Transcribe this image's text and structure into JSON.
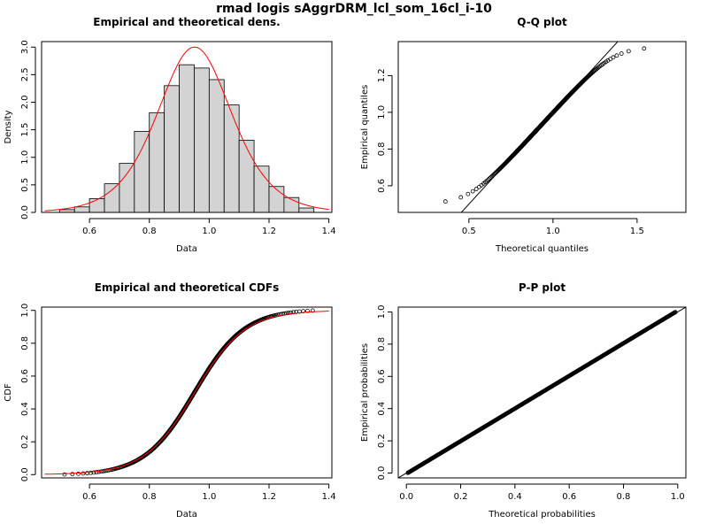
{
  "page": {
    "title": "rmad logis sAggrDRM_lcl_som_16cl_i-10"
  },
  "colors": {
    "fit_line": "#ff0000",
    "bar_fill": "#d3d3d3",
    "ink": "#000000"
  },
  "chart_data": [
    {
      "id": "density",
      "type": "bar",
      "title": "Empirical and theoretical dens.",
      "xlabel": "Data",
      "ylabel": "Density",
      "xlim": [
        0.44,
        1.41
      ],
      "ylim": [
        0,
        3.1
      ],
      "xticks": [
        "0.6",
        "0.8",
        "1.0",
        "1.2",
        "1.4"
      ],
      "yticks": [
        "0.0",
        "0.5",
        "1.0",
        "1.5",
        "2.0",
        "2.5",
        "3.0"
      ],
      "bins": [
        {
          "from": 0.5,
          "to": 0.55,
          "density": 0.05
        },
        {
          "from": 0.55,
          "to": 0.6,
          "density": 0.1
        },
        {
          "from": 0.6,
          "to": 0.65,
          "density": 0.25
        },
        {
          "from": 0.65,
          "to": 0.7,
          "density": 0.52
        },
        {
          "from": 0.7,
          "to": 0.75,
          "density": 0.89
        },
        {
          "from": 0.75,
          "to": 0.8,
          "density": 1.47
        },
        {
          "from": 0.8,
          "to": 0.85,
          "density": 1.81
        },
        {
          "from": 0.85,
          "to": 0.9,
          "density": 2.3
        },
        {
          "from": 0.9,
          "to": 0.95,
          "density": 2.68
        },
        {
          "from": 0.95,
          "to": 1.0,
          "density": 2.62
        },
        {
          "from": 1.0,
          "to": 1.05,
          "density": 2.41
        },
        {
          "from": 1.05,
          "to": 1.1,
          "density": 1.95
        },
        {
          "from": 1.1,
          "to": 1.15,
          "density": 1.31
        },
        {
          "from": 1.15,
          "to": 1.2,
          "density": 0.84
        },
        {
          "from": 1.2,
          "to": 1.25,
          "density": 0.47
        },
        {
          "from": 1.25,
          "to": 1.3,
          "density": 0.27
        },
        {
          "from": 1.3,
          "to": 1.35,
          "density": 0.08
        }
      ],
      "fit_curve": {
        "type": "logistic",
        "location": 0.951,
        "scale": 0.0833,
        "x_range": [
          0.45,
          1.4
        ]
      }
    },
    {
      "id": "qq",
      "type": "scatter",
      "title": "Q-Q plot",
      "xlabel": "Theoretical quantiles",
      "ylabel": "Empirical quantiles",
      "xlim": [
        0.08,
        1.79
      ],
      "ylim": [
        0.455,
        1.385
      ],
      "xticks": [
        "0.5",
        "1.0",
        "1.5"
      ],
      "yticks": [
        "0.6",
        "0.8",
        "1.0",
        "1.2"
      ],
      "points": {
        "location": 0.951,
        "scale": 0.0833,
        "empirical_range": [
          0.5,
          1.356
        ]
      },
      "reference_line": {
        "intercept": 0,
        "slope": 1
      }
    },
    {
      "id": "cdf",
      "type": "line",
      "title": "Empirical and theoretical CDFs",
      "xlabel": "Data",
      "ylabel": "CDF",
      "xlim": [
        0.44,
        1.41
      ],
      "ylim": [
        -0.02,
        1.02
      ],
      "xticks": [
        "0.6",
        "0.8",
        "1.0",
        "1.2",
        "1.4"
      ],
      "yticks": [
        "0.0",
        "0.2",
        "0.4",
        "0.6",
        "0.8",
        "1.0"
      ],
      "fit_curve": {
        "type": "logistic",
        "location": 0.951,
        "scale": 0.0833,
        "x_range": [
          0.45,
          1.4
        ]
      },
      "empirical_range": [
        0.5,
        1.356
      ]
    },
    {
      "id": "pp",
      "type": "scatter",
      "title": "P-P plot",
      "xlabel": "Theoretical probabilities",
      "ylabel": "Empirical probabilities",
      "xlim": [
        -0.03,
        1.03
      ],
      "ylim": [
        -0.03,
        1.03
      ],
      "xticks": [
        "0.0",
        "0.2",
        "0.4",
        "0.6",
        "0.8",
        "1.0"
      ],
      "yticks": [
        "0.0",
        "0.2",
        "0.4",
        "0.6",
        "0.8",
        "1.0"
      ],
      "reference_line": {
        "intercept": 0,
        "slope": 1
      }
    }
  ]
}
